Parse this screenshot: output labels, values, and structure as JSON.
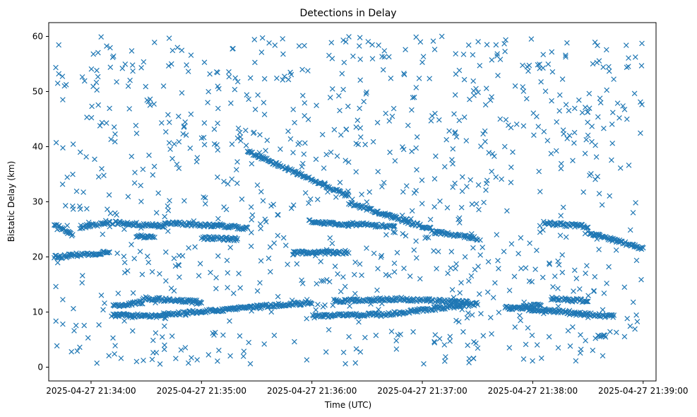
{
  "chart_data": {
    "type": "scatter",
    "title": "Detections in Delay",
    "xlabel": "Time (UTC)",
    "ylabel": "Bistatic Delay (km)",
    "x_ticks": [
      "2025-04-27 21:34:00",
      "2025-04-27 21:35:00",
      "2025-04-27 21:36:00",
      "2025-04-27 21:37:00",
      "2025-04-27 21:38:00",
      "2025-04-27 21:39:00"
    ],
    "y_ticks": [
      0,
      10,
      20,
      30,
      40,
      50,
      60
    ],
    "xlim": [
      "2025-04-27 21:33:37",
      "2025-04-27 21:39:07"
    ],
    "ylim": [
      -2.5,
      62.5
    ],
    "grid": false,
    "legend": "none",
    "marker": "x",
    "color": "#1f77b4",
    "series": [
      {
        "tracks": [
          {
            "start": "2025-04-27 21:33:40",
            "end": "2025-04-27 21:33:48",
            "y0": 20.0,
            "y1": 20.1
          },
          {
            "start": "2025-04-27 21:33:48",
            "end": "2025-04-27 21:34:10",
            "y0": 20.3,
            "y1": 20.8
          },
          {
            "start": "2025-04-27 21:33:40",
            "end": "2025-04-27 21:33:50",
            "y0": 26.0,
            "y1": 24.0
          },
          {
            "start": "2025-04-27 21:33:54",
            "end": "2025-04-27 21:34:08",
            "y0": 25.4,
            "y1": 26.0
          },
          {
            "start": "2025-04-27 21:34:08",
            "end": "2025-04-27 21:34:40",
            "y0": 26.3,
            "y1": 25.6
          },
          {
            "start": "2025-04-27 21:34:40",
            "end": "2025-04-27 21:35:15",
            "y0": 26.2,
            "y1": 25.5
          },
          {
            "start": "2025-04-27 21:35:15",
            "end": "2025-04-27 21:35:25",
            "y0": 25.5,
            "y1": 25.2
          },
          {
            "start": "2025-04-27 21:34:12",
            "end": "2025-04-27 21:34:28",
            "y0": 11.0,
            "y1": 11.8
          },
          {
            "start": "2025-04-27 21:34:28",
            "end": "2025-04-27 21:35:00",
            "y0": 12.5,
            "y1": 11.8
          },
          {
            "start": "2025-04-27 21:34:12",
            "end": "2025-04-27 21:34:40",
            "y0": 9.5,
            "y1": 9.2
          },
          {
            "start": "2025-04-27 21:34:40",
            "end": "2025-04-27 21:35:30",
            "y0": 9.5,
            "y1": 11.0
          },
          {
            "start": "2025-04-27 21:35:30",
            "end": "2025-04-27 21:36:00",
            "y0": 11.0,
            "y1": 11.7
          },
          {
            "start": "2025-04-27 21:36:00",
            "end": "2025-04-27 21:36:35",
            "y0": 9.2,
            "y1": 9.6
          },
          {
            "start": "2025-04-27 21:36:35",
            "end": "2025-04-27 21:37:30",
            "y0": 9.4,
            "y1": 11.5
          },
          {
            "start": "2025-04-27 21:36:12",
            "end": "2025-04-27 21:36:50",
            "y0": 12.0,
            "y1": 12.4
          },
          {
            "start": "2025-04-27 21:36:50",
            "end": "2025-04-27 21:37:25",
            "y0": 12.3,
            "y1": 11.8
          },
          {
            "start": "2025-04-27 21:35:25",
            "end": "2025-04-27 21:36:20",
            "y0": 39.2,
            "y1": 31.0
          },
          {
            "start": "2025-04-27 21:36:20",
            "end": "2025-04-27 21:37:05",
            "y0": 29.8,
            "y1": 25.0
          },
          {
            "start": "2025-04-27 21:37:05",
            "end": "2025-04-27 21:37:30",
            "y0": 24.6,
            "y1": 23.3
          },
          {
            "start": "2025-04-27 21:35:58",
            "end": "2025-04-27 21:36:20",
            "y0": 26.5,
            "y1": 25.8
          },
          {
            "start": "2025-04-27 21:36:20",
            "end": "2025-04-27 21:36:45",
            "y0": 26.0,
            "y1": 25.5
          },
          {
            "start": "2025-04-27 21:35:50",
            "end": "2025-04-27 21:36:20",
            "y0": 20.8,
            "y1": 20.8
          },
          {
            "start": "2025-04-27 21:34:25",
            "end": "2025-04-27 21:34:35",
            "y0": 23.8,
            "y1": 23.5
          },
          {
            "start": "2025-04-27 21:35:00",
            "end": "2025-04-27 21:35:20",
            "y0": 23.5,
            "y1": 23.2
          },
          {
            "start": "2025-04-27 21:37:55",
            "end": "2025-04-27 21:38:05",
            "y0": 11.0,
            "y1": 11.2
          },
          {
            "start": "2025-04-27 21:37:45",
            "end": "2025-04-27 21:38:20",
            "y0": 10.8,
            "y1": 10.0
          },
          {
            "start": "2025-04-27 21:38:20",
            "end": "2025-04-27 21:38:45",
            "y0": 9.8,
            "y1": 9.2
          },
          {
            "start": "2025-04-27 21:38:10",
            "end": "2025-04-27 21:38:30",
            "y0": 12.4,
            "y1": 12.0
          },
          {
            "start": "2025-04-27 21:38:05",
            "end": "2025-04-27 21:38:30",
            "y0": 26.2,
            "y1": 25.5
          },
          {
            "start": "2025-04-27 21:38:30",
            "end": "2025-04-27 21:39:00",
            "y0": 24.5,
            "y1": 21.5
          },
          {
            "start": "2025-04-27 21:38:35",
            "end": "2025-04-27 21:38:40",
            "y0": 5.8,
            "y1": 5.5
          }
        ],
        "scatter": {
          "xmin": "2025-04-27 21:33:40",
          "xmax": "2025-04-27 21:39:00",
          "ymin": 0.5,
          "ymax": 60.0
        }
      }
    ]
  }
}
